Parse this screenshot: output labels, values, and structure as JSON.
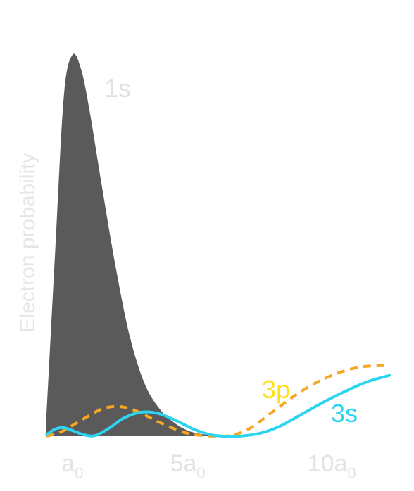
{
  "chart_data": {
    "type": "line",
    "ylabel": "Electron probability",
    "xlabel": "",
    "xlim": [
      0.1,
      12.0
    ],
    "ylim": [
      0,
      0.57
    ],
    "x_ticks": [
      {
        "value": 1,
        "main": "a",
        "sub": "0"
      },
      {
        "value": 5,
        "main": "5a",
        "sub": "0"
      },
      {
        "value": 10,
        "main": "10a",
        "sub": "0"
      }
    ],
    "grid": false,
    "legend": "none (series labeled directly on curves)",
    "series": [
      {
        "name": "1s",
        "style": "filled area",
        "color": "#5a5a5a",
        "label_color": "#e0e0e0",
        "x": [
          0.1,
          0.4,
          0.7,
          1.0,
          1.3,
          1.6,
          2.0,
          2.5,
          3.0,
          3.5,
          4.0,
          4.5,
          5.0,
          5.5,
          6.0,
          7.0
        ],
        "y": [
          0.03,
          0.26,
          0.48,
          0.54,
          0.52,
          0.46,
          0.36,
          0.24,
          0.14,
          0.075,
          0.04,
          0.02,
          0.008,
          0.003,
          0.001,
          0.0
        ]
      },
      {
        "name": "3p",
        "style": "dashed line",
        "color": "#f5a623",
        "label_color": "#ffe01a",
        "x": [
          0.1,
          0.6,
          1.2,
          2.0,
          2.6,
          3.2,
          4.0,
          5.0,
          6.0,
          6.6,
          7.2,
          8.0,
          9.0,
          10.0,
          11.0,
          12.0
        ],
        "y": [
          0.0,
          0.006,
          0.02,
          0.038,
          0.042,
          0.036,
          0.02,
          0.004,
          0.0,
          0.002,
          0.012,
          0.036,
          0.065,
          0.086,
          0.098,
          0.1
        ]
      },
      {
        "name": "3s",
        "style": "solid line",
        "color": "#2cd4f0",
        "label_color": "#2cd4f0",
        "x": [
          0.1,
          0.4,
          0.7,
          1.0,
          1.4,
          1.8,
          2.3,
          2.8,
          3.4,
          4.0,
          4.6,
          5.2,
          5.8,
          6.3,
          6.8,
          7.5,
          8.2,
          9.0,
          9.8,
          10.6,
          11.3,
          12.0
        ],
        "y": [
          0.002,
          0.01,
          0.012,
          0.008,
          0.002,
          0.001,
          0.012,
          0.026,
          0.034,
          0.032,
          0.022,
          0.01,
          0.002,
          0.0,
          0.0,
          0.004,
          0.014,
          0.032,
          0.05,
          0.066,
          0.078,
          0.086
        ]
      }
    ]
  }
}
